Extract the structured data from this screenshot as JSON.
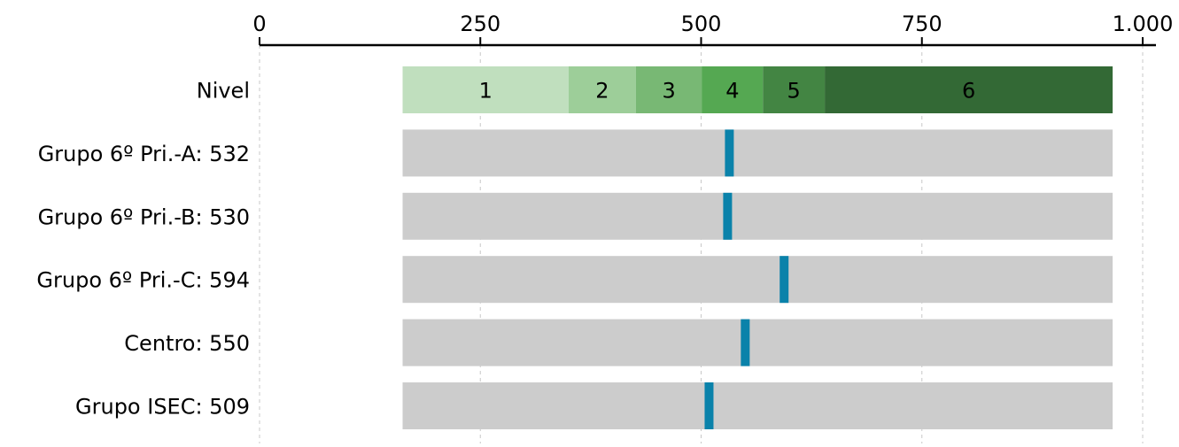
{
  "chart_data": {
    "type": "bar",
    "xlim": [
      0,
      1000
    ],
    "x_ticks": [
      {
        "value": 0,
        "label": "0"
      },
      {
        "value": 250,
        "label": "250"
      },
      {
        "value": 500,
        "label": "500"
      },
      {
        "value": 750,
        "label": "750"
      },
      {
        "value": 1000,
        "label": "1.000"
      }
    ],
    "grid": "vertical dashed",
    "axis_position": "top",
    "range": [
      162,
      966
    ],
    "levels": {
      "label": "Nivel",
      "bands": [
        {
          "label": "1",
          "from": 162,
          "to": 350,
          "color": "#c0dfbe"
        },
        {
          "label": "2",
          "from": 350,
          "to": 426,
          "color": "#9dce99"
        },
        {
          "label": "3",
          "from": 426,
          "to": 501,
          "color": "#78b874"
        },
        {
          "label": "4",
          "from": 501,
          "to": 570,
          "color": "#55a852"
        },
        {
          "label": "5",
          "from": 570,
          "to": 640,
          "color": "#438543"
        },
        {
          "label": "6",
          "from": 640,
          "to": 966,
          "color": "#336935"
        }
      ]
    },
    "rows": [
      {
        "label": "Grupo 6º Pri.-A: 532",
        "value": 532
      },
      {
        "label": "Grupo 6º Pri.-B: 530",
        "value": 530
      },
      {
        "label": "Grupo 6º Pri.-C: 594",
        "value": 594
      },
      {
        "label": "Centro: 550",
        "value": 550
      },
      {
        "label": "Grupo ISEC: 509",
        "value": 509
      }
    ],
    "colors": {
      "track": "#cccccc",
      "marker": "#0a82aa",
      "grid": "#c8c8c8",
      "axis": "#000000",
      "text": "#000000"
    }
  }
}
